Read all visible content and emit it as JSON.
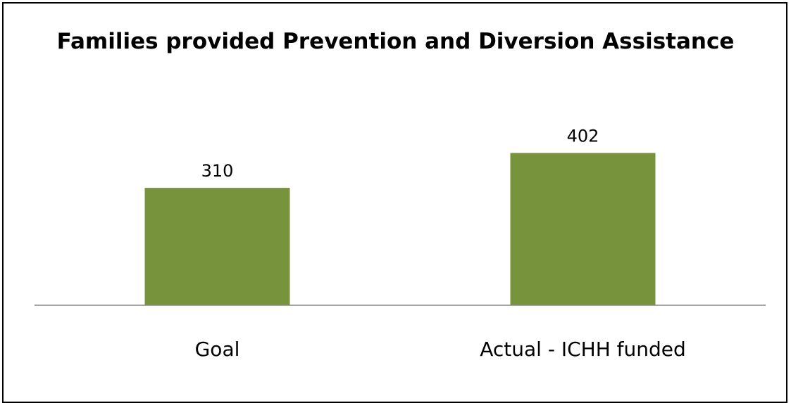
{
  "chart_data": {
    "type": "bar",
    "title": "Families provided Prevention and Diversion Assistance",
    "categories": [
      "Goal",
      "Actual - ICHH funded"
    ],
    "values": [
      310,
      402
    ],
    "data_labels": [
      "310",
      "402"
    ],
    "xlabel": "",
    "ylabel": "",
    "ylim": [
      0,
      450
    ],
    "grid": false,
    "legend": "none",
    "bar_color": "#77933c",
    "axis_color": "#878787"
  }
}
